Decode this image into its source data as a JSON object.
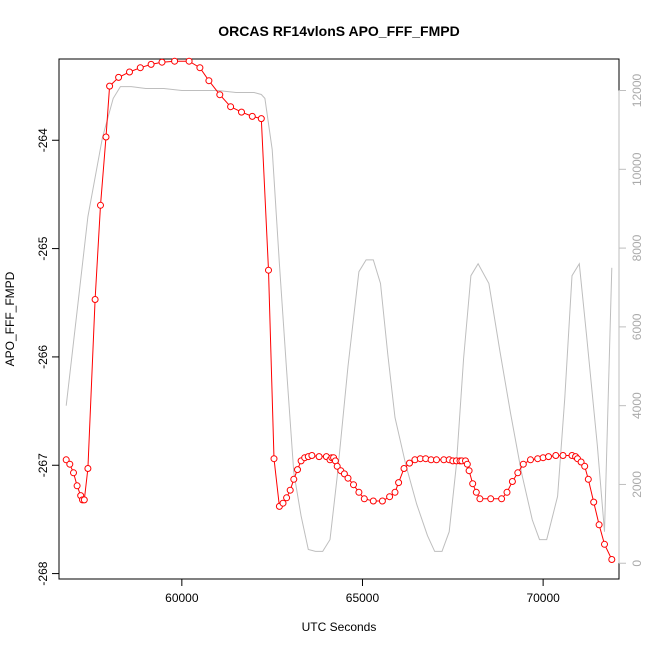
{
  "chart_data": {
    "type": "line",
    "title": "ORCAS RF14vlonS APO_FFF_FMPD",
    "xlabel": "UTC Seconds",
    "ylabel": "APO_FFF_FMPD",
    "xlim": [
      56600,
      72100
    ],
    "ylim": [
      -268.05,
      -263.25
    ],
    "y2lim": [
      -400,
      12800
    ],
    "grid": false,
    "x_ticks": [
      60000,
      65000,
      70000
    ],
    "x_tick_labels": [
      "60000",
      "65000",
      "70000"
    ],
    "y_ticks": [
      -268,
      -267,
      -266,
      -265,
      -264
    ],
    "y_tick_labels": [
      "-268",
      "-267",
      "-266",
      "-265",
      "-264"
    ],
    "y2_ticks": [
      0,
      2000,
      4000,
      6000,
      8000,
      10000,
      12000
    ],
    "y2_tick_labels": [
      "0",
      "2000",
      "4000",
      "6000",
      "8000",
      "10000",
      "12000"
    ],
    "colors": {
      "primary": "#ff0000",
      "secondary": "#bebebe"
    },
    "series": [
      {
        "axis": "left",
        "style": "line+points",
        "x": [
          56800,
          56900,
          57000,
          57100,
          57200,
          57250,
          57300,
          57400,
          57600,
          57750,
          57900,
          58000,
          58250,
          58550,
          58850,
          59150,
          59450,
          59800,
          60200,
          60500,
          60750,
          61050,
          61350,
          61650,
          61950,
          62200,
          62400,
          62550,
          62700,
          62800,
          62900,
          63000,
          63100,
          63200,
          63300,
          63400,
          63500,
          63600,
          63800,
          64000,
          64100,
          64150,
          64200,
          64250,
          64300,
          64400,
          64500,
          64600,
          64750,
          64900,
          65050,
          65300,
          65550,
          65750,
          65900,
          66000,
          66150,
          66300,
          66450,
          66600,
          66750,
          66900,
          67050,
          67250,
          67400,
          67500,
          67600,
          67700,
          67750,
          67850,
          67900,
          67950,
          68050,
          68150,
          68250,
          68550,
          68850,
          69000,
          69150,
          69300,
          69450,
          69650,
          69850,
          70000,
          70150,
          70350,
          70550,
          70800,
          70900,
          70950,
          71050,
          71150,
          71250,
          71400,
          71550,
          71700,
          71900
        ],
        "y": [
          -266.95,
          -266.99,
          -267.07,
          -267.19,
          -267.28,
          -267.32,
          -267.32,
          -267.03,
          -265.47,
          -264.6,
          -263.97,
          -263.5,
          -263.42,
          -263.37,
          -263.33,
          -263.3,
          -263.28,
          -263.27,
          -263.27,
          -263.33,
          -263.45,
          -263.58,
          -263.69,
          -263.74,
          -263.78,
          -263.8,
          -265.2,
          -266.94,
          -267.38,
          -267.35,
          -267.3,
          -267.23,
          -267.13,
          -267.04,
          -266.96,
          -266.93,
          -266.92,
          -266.91,
          -266.92,
          -266.92,
          -266.95,
          -266.93,
          -266.93,
          -266.96,
          -267.01,
          -267.05,
          -267.08,
          -267.12,
          -267.18,
          -267.25,
          -267.31,
          -267.33,
          -267.33,
          -267.29,
          -267.25,
          -267.16,
          -267.03,
          -266.98,
          -266.95,
          -266.94,
          -266.94,
          -266.95,
          -266.95,
          -266.95,
          -266.95,
          -266.96,
          -266.96,
          -266.96,
          -266.96,
          -266.96,
          -266.99,
          -267.05,
          -267.17,
          -267.25,
          -267.31,
          -267.31,
          -267.31,
          -267.25,
          -267.15,
          -267.07,
          -266.99,
          -266.95,
          -266.94,
          -266.93,
          -266.92,
          -266.91,
          -266.91,
          -266.91,
          -266.92,
          -266.94,
          -266.97,
          -267.01,
          -267.13,
          -267.34,
          -267.55,
          -267.73,
          -267.87
        ]
      },
      {
        "axis": "right",
        "style": "line",
        "x": [
          56800,
          57100,
          57400,
          57800,
          58100,
          58300,
          58600,
          59000,
          59500,
          60000,
          60500,
          61000,
          61500,
          62000,
          62200,
          62300,
          62500,
          62700,
          62900,
          63100,
          63300,
          63500,
          63700,
          63900,
          64100,
          64300,
          64600,
          64900,
          65100,
          65300,
          65500,
          65700,
          65900,
          66200,
          66500,
          66800,
          67000,
          67200,
          67400,
          67600,
          67800,
          68000,
          68200,
          68500,
          68800,
          69100,
          69400,
          69700,
          69900,
          70100,
          70400,
          70600,
          70800,
          71000,
          71200,
          71500,
          71700,
          71900
        ],
        "y": [
          4000,
          6400,
          8800,
          10800,
          11800,
          12100,
          12100,
          12050,
          12050,
          12000,
          12000,
          12000,
          11950,
          11950,
          11900,
          11800,
          10500,
          7600,
          4900,
          2300,
          1200,
          350,
          300,
          300,
          600,
          2200,
          5000,
          7400,
          7700,
          7700,
          7100,
          5300,
          3700,
          2500,
          1500,
          700,
          300,
          300,
          800,
          2500,
          5200,
          7300,
          7600,
          7100,
          5400,
          3800,
          2300,
          1100,
          600,
          600,
          1700,
          4200,
          7300,
          7600,
          5800,
          3000,
          800,
          7500
        ]
      }
    ]
  }
}
